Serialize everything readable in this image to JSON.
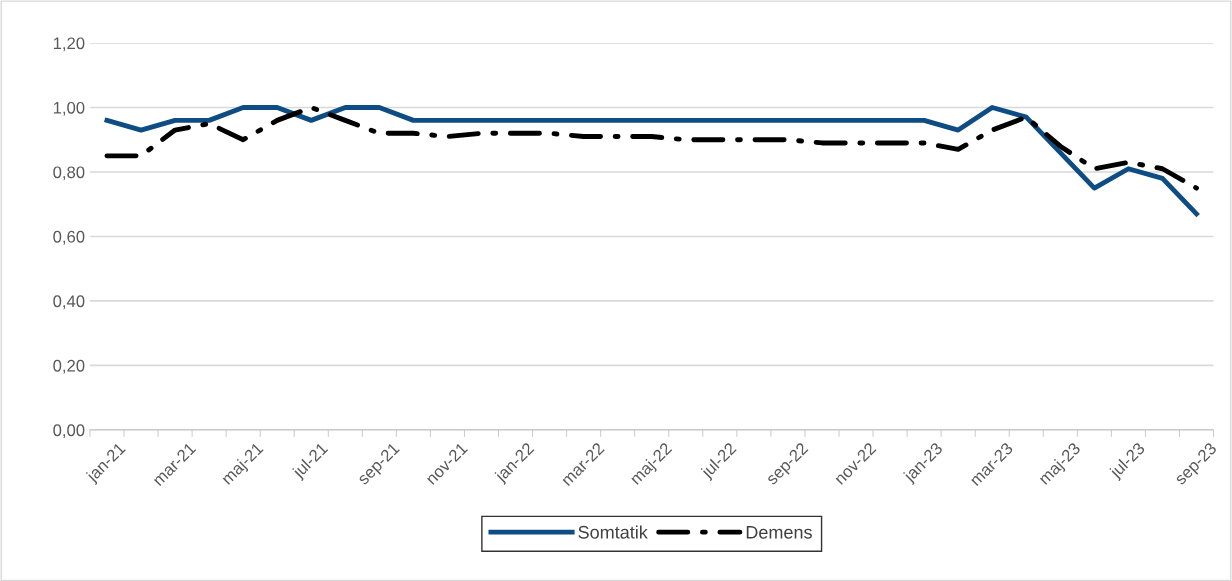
{
  "chart_data": {
    "type": "line",
    "categories": [
      "jan-21",
      null,
      "mar-21",
      null,
      "maj-21",
      null,
      "jul-21",
      null,
      "sep-21",
      null,
      "nov-21",
      null,
      "jan-22",
      null,
      "mar-22",
      null,
      "maj-22",
      null,
      "jul-22",
      null,
      "sep-22",
      null,
      "nov-22",
      null,
      "jan-23",
      null,
      "mar-23",
      null,
      "maj-23",
      null,
      "jul-23",
      null,
      "sep-23"
    ],
    "series": [
      {
        "name": "Somtatik",
        "color": "#0e4c84",
        "line_style": "solid",
        "values": [
          0.96,
          0.93,
          0.96,
          0.96,
          1.0,
          1.0,
          0.96,
          1.0,
          1.0,
          0.96,
          0.96,
          0.96,
          0.96,
          0.96,
          0.96,
          0.96,
          0.96,
          0.96,
          0.96,
          0.96,
          0.96,
          0.96,
          0.96,
          0.96,
          0.96,
          0.93,
          1.0,
          0.97,
          0.86,
          0.75,
          0.81,
          0.78,
          0.67
        ]
      },
      {
        "name": "Demens",
        "color": "#000000",
        "line_style": "dashed",
        "values": [
          0.85,
          0.85,
          0.93,
          0.95,
          0.9,
          0.96,
          1.0,
          0.96,
          0.92,
          0.92,
          0.91,
          0.92,
          0.92,
          0.92,
          0.91,
          0.91,
          0.91,
          0.9,
          0.9,
          0.9,
          0.9,
          0.89,
          0.89,
          0.89,
          0.89,
          0.87,
          0.93,
          0.97,
          0.88,
          0.81,
          0.83,
          0.81,
          0.75
        ]
      }
    ],
    "ylim": [
      0,
      1.2
    ],
    "yticks": [
      {
        "value": 0,
        "label": "0,00"
      },
      {
        "value": 0.2,
        "label": "0,20"
      },
      {
        "value": 0.4,
        "label": "0,40"
      },
      {
        "value": 0.6,
        "label": "0,60"
      },
      {
        "value": 0.8,
        "label": "0,80"
      },
      {
        "value": 1.0,
        "label": "1,00"
      },
      {
        "value": 1.2,
        "label": "1,20"
      }
    ],
    "grid": "y",
    "legend": "bottom",
    "marker": "none"
  }
}
